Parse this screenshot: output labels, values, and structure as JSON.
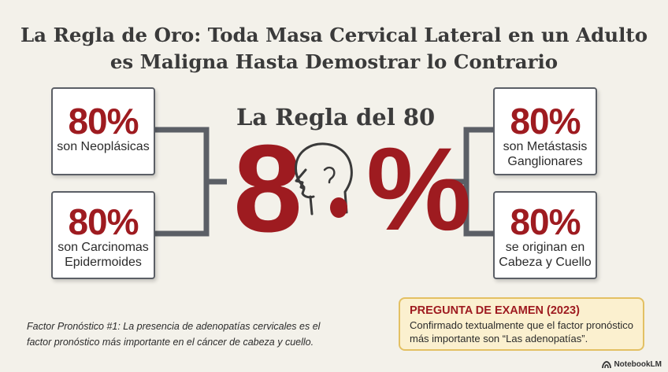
{
  "title": {
    "line1": "La Regla de Oro: Toda Masa Cervical Lateral en un Adulto",
    "line2": "es Maligna Hasta Demostrar lo Contrario"
  },
  "center": {
    "label": "La Regla del 80",
    "digit": "8",
    "percent": "%",
    "icon": "head-neck-profile-icon"
  },
  "cards": {
    "top_left": {
      "pct": "80%",
      "line1": "son Neoplásicas",
      "line2": ""
    },
    "bottom_left": {
      "pct": "80%",
      "line1": "son Carcinomas",
      "line2": "Epidermoides"
    },
    "top_right": {
      "pct": "80%",
      "line1": "son Metástasis",
      "line2": "Ganglionares"
    },
    "bottom_right": {
      "pct": "80%",
      "line1": "se originan en",
      "line2": "Cabeza y Cuello"
    }
  },
  "footnote": {
    "line1": "Factor Pronóstico #1: La presencia de adenopatías cervicales es el",
    "line2": "factor pronóstico más importante en el cáncer de cabeza y cuello."
  },
  "exam": {
    "title": "PREGUNTA DE EXAMEN (2023)",
    "line1": "Confirmado textualmente que el factor pronóstico",
    "line2": "más importante son “Las adenopatías”."
  },
  "brand": {
    "label": "NotebookLM",
    "icon": "notebooklm-logo-icon"
  },
  "colors": {
    "accent": "#9e1b20",
    "background": "#f3f1ea",
    "exam_bg": "#fbf0cf",
    "exam_border": "#e3c063"
  }
}
